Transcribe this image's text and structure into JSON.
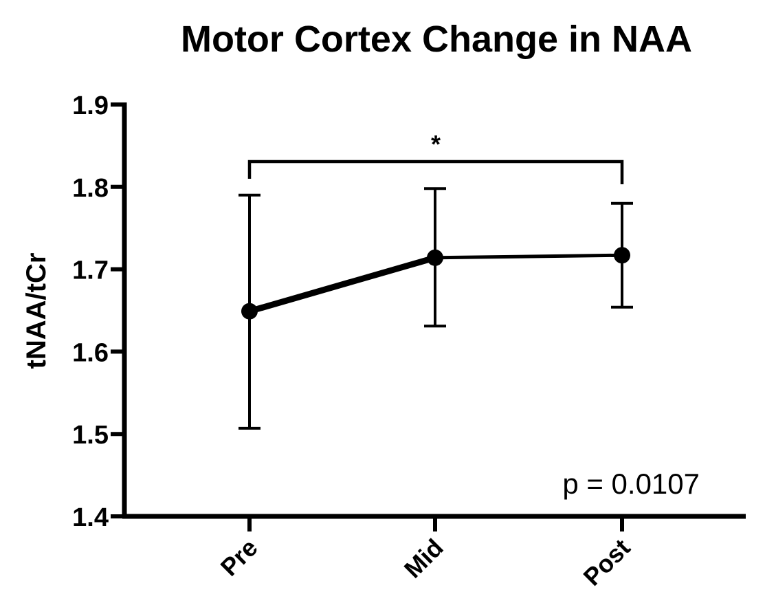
{
  "chart_data": {
    "type": "line",
    "title": "Motor Cortex Change in NAA",
    "xlabel": "",
    "ylabel": "tNAA/tCr",
    "categories": [
      "Pre",
      "Mid",
      "Post"
    ],
    "series": [
      {
        "values": [
          1.649,
          1.714,
          1.717
        ],
        "error_upper": [
          1.79,
          1.798,
          1.78
        ],
        "error_lower": [
          1.507,
          1.631,
          1.654
        ]
      }
    ],
    "ylim": [
      1.4,
      1.9
    ],
    "yticks": [
      "1.4",
      "1.5",
      "1.6",
      "1.7",
      "1.8",
      "1.9"
    ],
    "grid": false,
    "legend": "none",
    "significance": {
      "from": "Pre",
      "to": "Post",
      "label": "*"
    },
    "annotation": "p = 0.0107"
  }
}
